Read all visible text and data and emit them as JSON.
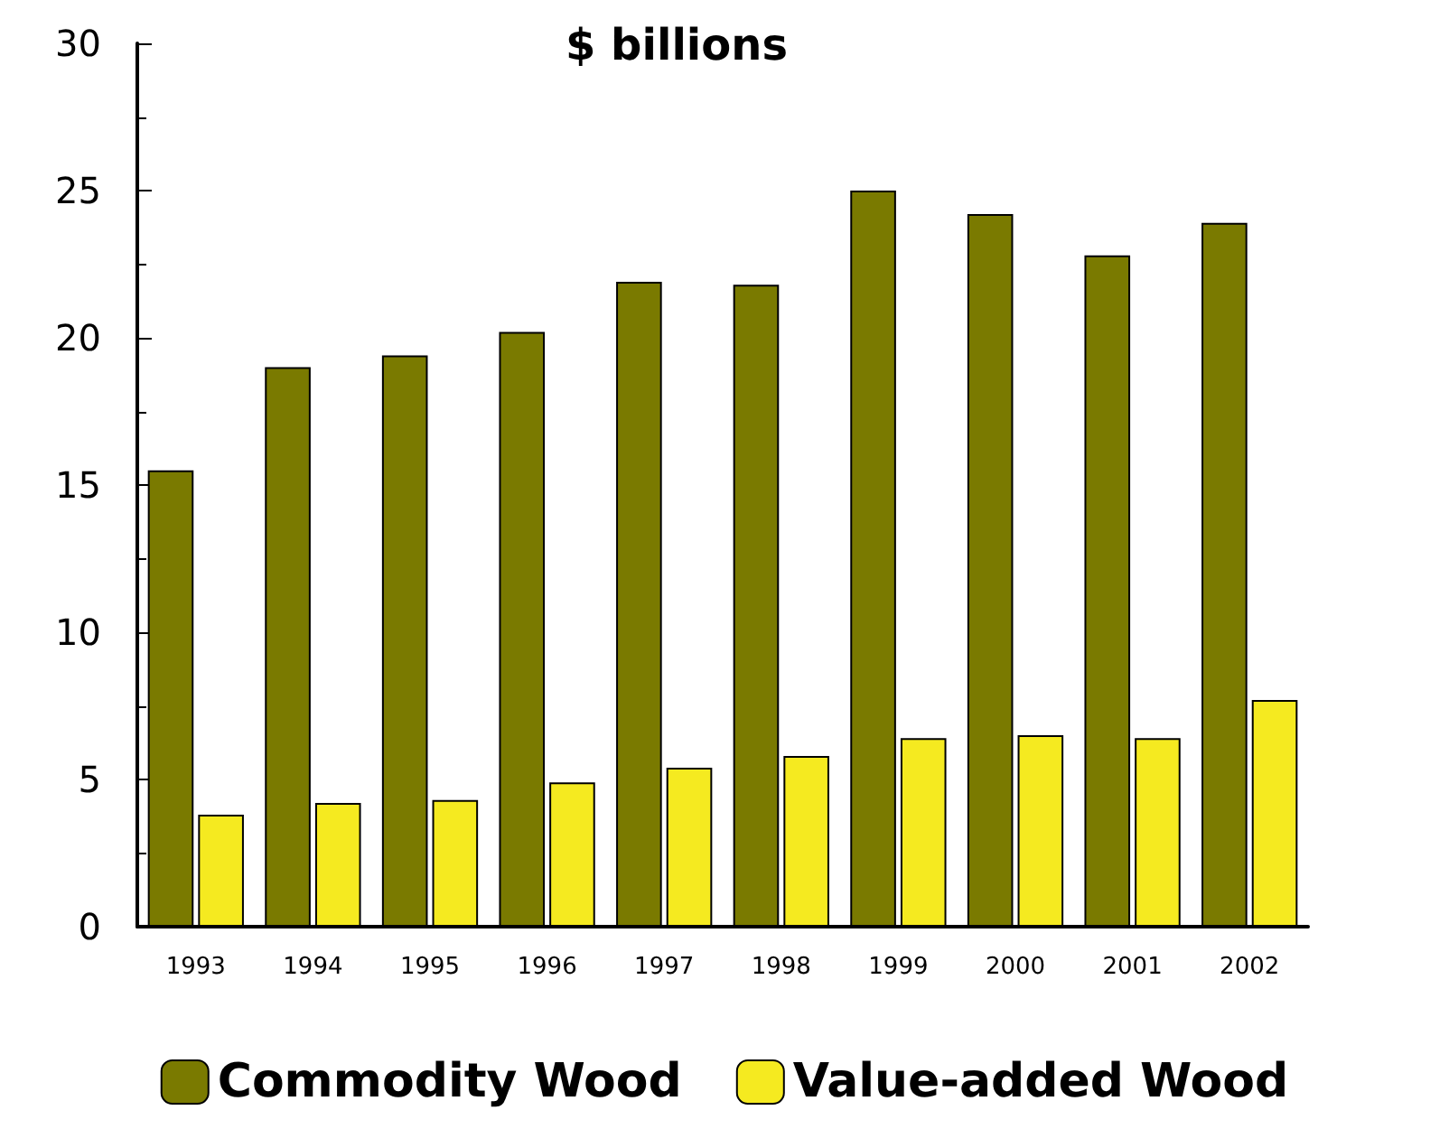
{
  "chart_data": {
    "type": "bar",
    "title": "$ billions",
    "categories": [
      "1993",
      "1994",
      "1995",
      "1996",
      "1997",
      "1998",
      "1999",
      "2000",
      "2001",
      "2002"
    ],
    "series": [
      {
        "name": "Commodity Wood",
        "color": "#7a7a00",
        "values": [
          15.5,
          19.0,
          19.4,
          20.2,
          21.9,
          21.8,
          25.0,
          24.2,
          22.8,
          23.9
        ]
      },
      {
        "name": "Value-added Wood",
        "color": "#f5ea20",
        "values": [
          3.8,
          4.2,
          4.3,
          4.9,
          5.4,
          5.8,
          6.4,
          6.5,
          6.4,
          7.7
        ]
      }
    ],
    "ylim": [
      0,
      30
    ],
    "yticks": [
      0,
      5,
      10,
      15,
      20,
      25,
      30
    ],
    "grid": false,
    "legend": "bottom"
  }
}
